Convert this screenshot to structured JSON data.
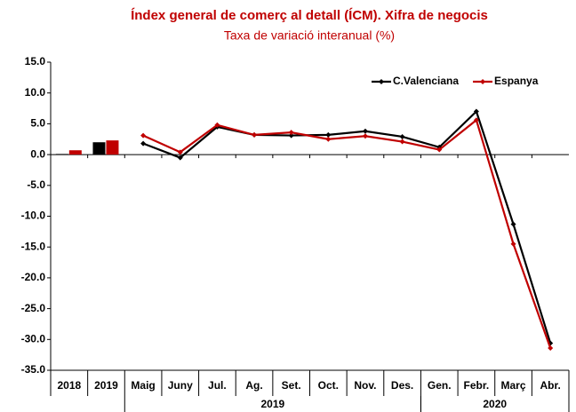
{
  "chart_data": {
    "type": "combo",
    "title": "Índex general de comerç al detall (ÍCM).  Xifra de negocis",
    "subtitle": "Taxa de variació interanual (%)",
    "categories": [
      "2018",
      "2019",
      "Maig",
      "Juny",
      "Jul.",
      "Ag.",
      "Set.",
      "Oct.",
      "Nov.",
      "Des.",
      "Gen.",
      "Febr.",
      "Març",
      "Abr."
    ],
    "groups": [
      {
        "label": "2019",
        "from": 2,
        "to": 9
      },
      {
        "label": "2020",
        "from": 10,
        "to": 13
      }
    ],
    "series": [
      {
        "name": "C.Valenciana",
        "color": "#000000",
        "values": [
          0.1,
          2.0,
          1.8,
          -0.5,
          4.5,
          3.2,
          3.1,
          3.2,
          3.8,
          2.9,
          1.2,
          7.0,
          -11.3,
          -30.6
        ]
      },
      {
        "name": "Espanya",
        "color": "#c00000",
        "values": [
          0.7,
          2.3,
          3.1,
          0.4,
          4.8,
          3.2,
          3.6,
          2.5,
          3.0,
          2.1,
          0.8,
          5.6,
          -14.5,
          -31.4
        ]
      }
    ],
    "ylim": [
      -35,
      15
    ],
    "yticks": [
      {
        "value": 15,
        "label": "15.0"
      },
      {
        "value": 10,
        "label": "10.0"
      },
      {
        "value": 5,
        "label": "5.0"
      },
      {
        "value": 0,
        "label": "0.0"
      },
      {
        "value": -5,
        "label": "-5.0"
      },
      {
        "value": -10,
        "label": "-10.0"
      },
      {
        "value": -15,
        "label": "-15.0"
      },
      {
        "value": -20,
        "label": "-20.0"
      },
      {
        "value": -25,
        "label": "-25.0"
      },
      {
        "value": -30,
        "label": "-30.0"
      },
      {
        "value": -35,
        "label": "-35.0"
      }
    ],
    "grid": false,
    "legend": "top-right"
  }
}
